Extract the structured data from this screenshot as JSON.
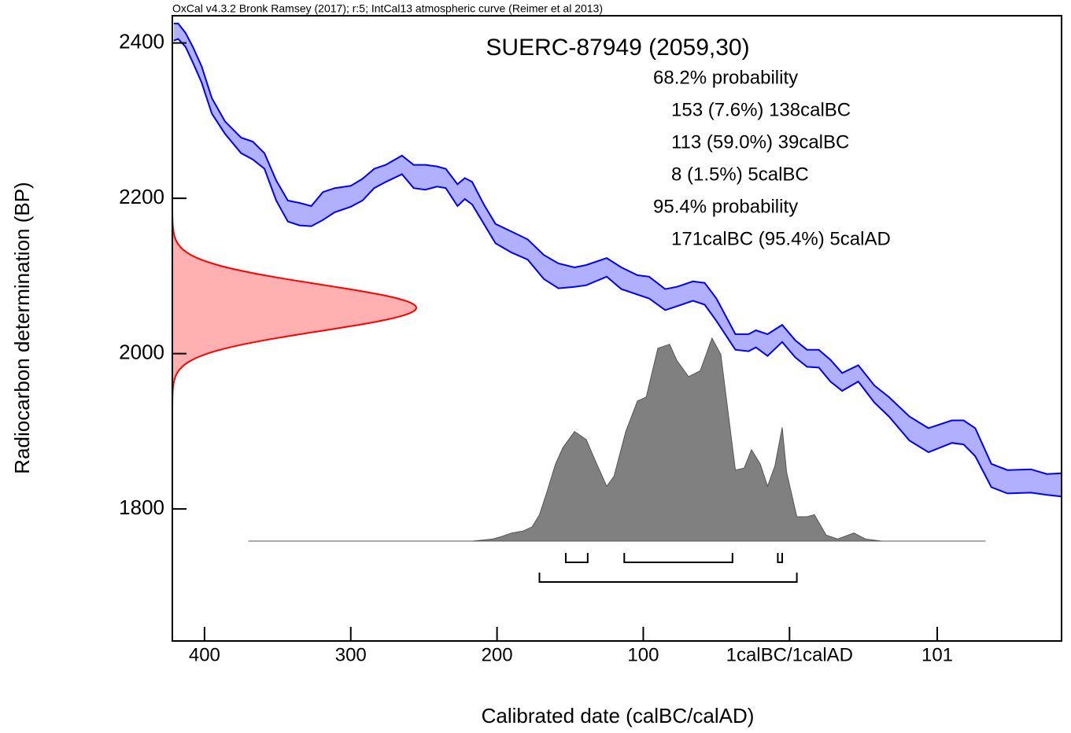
{
  "chart_data": {
    "type": "calibration",
    "note": "OxCal v4.3.2 Bronk Ramsey (2017); r:5; IntCal13 atmospheric curve (Reimer et al 2013)",
    "title": "SUERC-87949 (2059,30)",
    "xlabel": "Calibrated date (calBC/calAD)",
    "ylabel": "Radiocarbon determination (BP)",
    "xlim": [
      -422,
      186
    ],
    "ylim": [
      1630,
      2435
    ],
    "xticks": [
      {
        "value": -400,
        "label": "400"
      },
      {
        "value": -300,
        "label": "300"
      },
      {
        "value": -200,
        "label": "200"
      },
      {
        "value": -100,
        "label": "100"
      },
      {
        "value": 0,
        "label": "1calBC/1calAD"
      },
      {
        "value": 101,
        "label": "101"
      }
    ],
    "yticks": [
      1800,
      2000,
      2200,
      2400
    ],
    "measurement": {
      "mean": 2059,
      "error": 30,
      "color": "#ff0000",
      "fill": "#ffb0b0"
    },
    "curve": {
      "color": "#0000ff",
      "fill": "#b0b0ff",
      "x": [
        -421,
        -418,
        -413,
        -408,
        -402,
        -395,
        -386,
        -375,
        -367,
        -359,
        -351,
        -343,
        -335,
        -327,
        -319,
        -311,
        -300,
        -292,
        -284,
        -276,
        -265,
        -257,
        -249,
        -241,
        -235,
        -227,
        -222,
        -217,
        -209,
        -201,
        -190,
        -179,
        -168,
        -158,
        -147,
        -139,
        -125,
        -115,
        -104,
        -96,
        -85,
        -77,
        -66,
        -58,
        -50,
        -37,
        -28,
        -23,
        -15,
        -5,
        4,
        12,
        20,
        28,
        36,
        47,
        58,
        68,
        82,
        95,
        111,
        119,
        127,
        138,
        149,
        165,
        176,
        186
      ],
      "upper": [
        2425,
        2425,
        2413,
        2395,
        2370,
        2329,
        2299,
        2278,
        2273,
        2258,
        2223,
        2197,
        2194,
        2190,
        2208,
        2213,
        2216,
        2225,
        2238,
        2243,
        2255,
        2243,
        2243,
        2241,
        2238,
        2218,
        2226,
        2221,
        2192,
        2167,
        2157,
        2147,
        2127,
        2116,
        2111,
        2114,
        2123,
        2111,
        2101,
        2099,
        2083,
        2086,
        2093,
        2091,
        2071,
        2025,
        2025,
        2030,
        2025,
        2037,
        2017,
        2005,
        2005,
        1992,
        1975,
        1985,
        1959,
        1944,
        1919,
        1904,
        1914,
        1914,
        1904,
        1858,
        1850,
        1851,
        1845,
        1846
      ],
      "lower": [
        2403,
        2405,
        2395,
        2375,
        2349,
        2309,
        2283,
        2258,
        2250,
        2238,
        2197,
        2170,
        2165,
        2164,
        2172,
        2182,
        2189,
        2197,
        2213,
        2221,
        2231,
        2213,
        2211,
        2215,
        2213,
        2190,
        2199,
        2192,
        2167,
        2142,
        2130,
        2121,
        2096,
        2084,
        2086,
        2088,
        2099,
        2083,
        2076,
        2071,
        2056,
        2061,
        2068,
        2063,
        2042,
        2005,
        2003,
        2008,
        1997,
        2015,
        1995,
        1983,
        1982,
        1964,
        1952,
        1964,
        1937,
        1919,
        1888,
        1873,
        1885,
        1883,
        1868,
        1828,
        1820,
        1821,
        1818,
        1816
      ]
    },
    "probability": {
      "color": "#808080",
      "x": [
        -370,
        -217,
        -203,
        -198,
        -190,
        -182,
        -176,
        -171,
        -166,
        -160,
        -155,
        -147,
        -139,
        -133,
        -125,
        -120,
        -112,
        -104,
        -98,
        -90,
        -82,
        -77,
        -69,
        -61,
        -53,
        -47,
        -37,
        -31,
        -26,
        -20,
        -15,
        -10,
        -5,
        -2,
        5,
        12,
        17,
        25,
        33,
        44,
        52,
        63,
        134
      ],
      "values": [
        0,
        0,
        1,
        2,
        4,
        5,
        7,
        13,
        24,
        38,
        46,
        54,
        50,
        40,
        27,
        32,
        54,
        69,
        71,
        95,
        97,
        89,
        81,
        84,
        100,
        92,
        35,
        36,
        45,
        38,
        27,
        37,
        56,
        34,
        12,
        12,
        13,
        3,
        1,
        4,
        1,
        0,
        0
      ]
    },
    "ranges": [
      {
        "level": "68.2% probability",
        "intervals": [
          {
            "from": -153,
            "to": -138,
            "label": "153 (7.6%) 138calBC"
          },
          {
            "from": -113,
            "to": -39,
            "label": "113 (59.0%) 39calBC"
          },
          {
            "from": -8,
            "to": -5,
            "label": "8 (1.5%) 5calBC"
          }
        ]
      },
      {
        "level": "95.4% probability",
        "intervals": [
          {
            "from": -171,
            "to": 5,
            "label": "171calBC (95.4%) 5calAD"
          }
        ]
      }
    ]
  }
}
